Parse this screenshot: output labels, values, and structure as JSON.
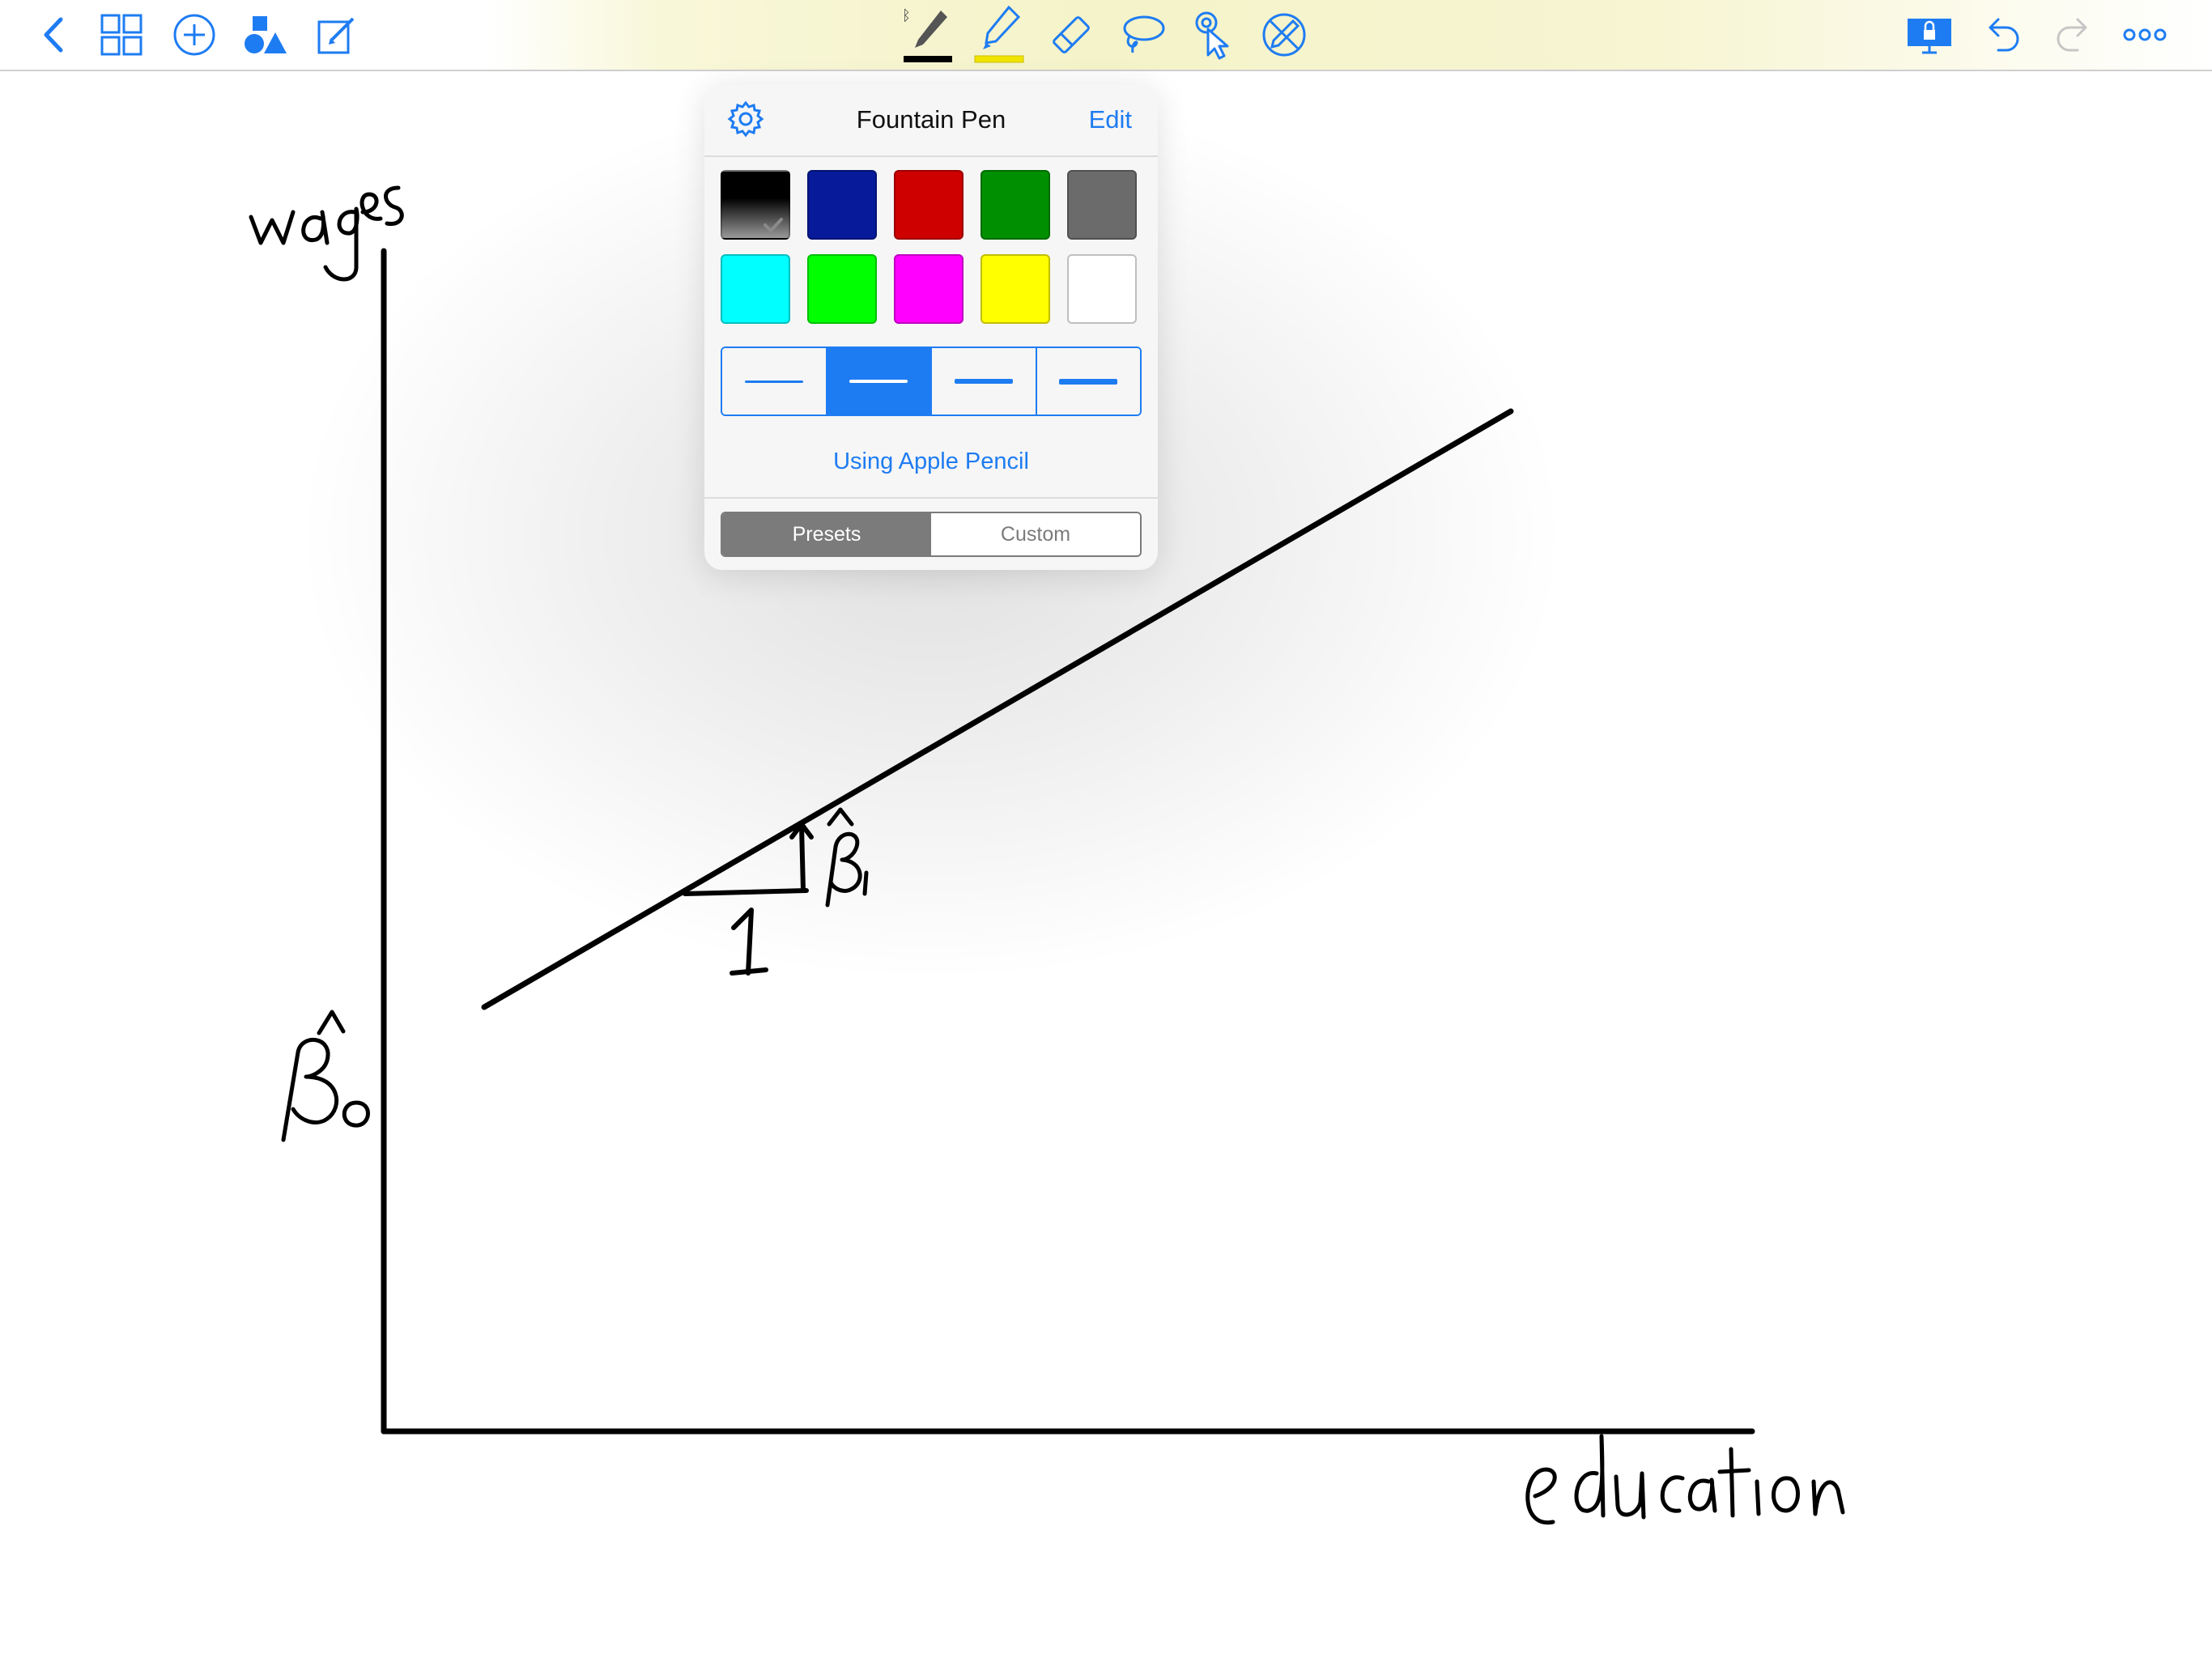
{
  "colors": {
    "accent": "#1e7cf2",
    "ink": "#000000",
    "toolbar_highlight": "#f5f3c9"
  },
  "toolbar": {
    "left": [
      "back-icon",
      "thumbnails-icon",
      "add-icon",
      "shapes-icon",
      "edit-document-icon"
    ],
    "center": [
      "pen-tool-icon",
      "highlighter-tool-icon",
      "eraser-tool-icon",
      "lasso-tool-icon",
      "pointer-tool-icon",
      "disable-pencil-icon"
    ],
    "right": [
      "presentation-lock-icon",
      "undo-icon",
      "redo-icon",
      "more-icon"
    ]
  },
  "popover": {
    "title": "Fountain Pen",
    "edit_label": "Edit",
    "settings_icon": "gear-icon",
    "swatches": [
      {
        "name": "black",
        "color": "#000000",
        "selected": true
      },
      {
        "name": "navy",
        "color": "#061a9a"
      },
      {
        "name": "red",
        "color": "#cf0000"
      },
      {
        "name": "green",
        "color": "#008f00"
      },
      {
        "name": "gray",
        "color": "#6b6b6b"
      },
      {
        "name": "cyan",
        "color": "#00ffff"
      },
      {
        "name": "lime",
        "color": "#00ff00"
      },
      {
        "name": "magenta",
        "color": "#ff00ff"
      },
      {
        "name": "yellow",
        "color": "#ffff00"
      },
      {
        "name": "white",
        "color": "#ffffff"
      }
    ],
    "stroke_widths_selected": 2,
    "pencil_label": "Using Apple Pencil",
    "modes": [
      "Presets",
      "Custom"
    ],
    "mode_selected": "Presets"
  },
  "notes": {
    "y_axis_label": "wages",
    "x_axis_label": "education",
    "intercept_label": "β̂₀",
    "slope_label": "β̂₁",
    "run_label": "1"
  }
}
